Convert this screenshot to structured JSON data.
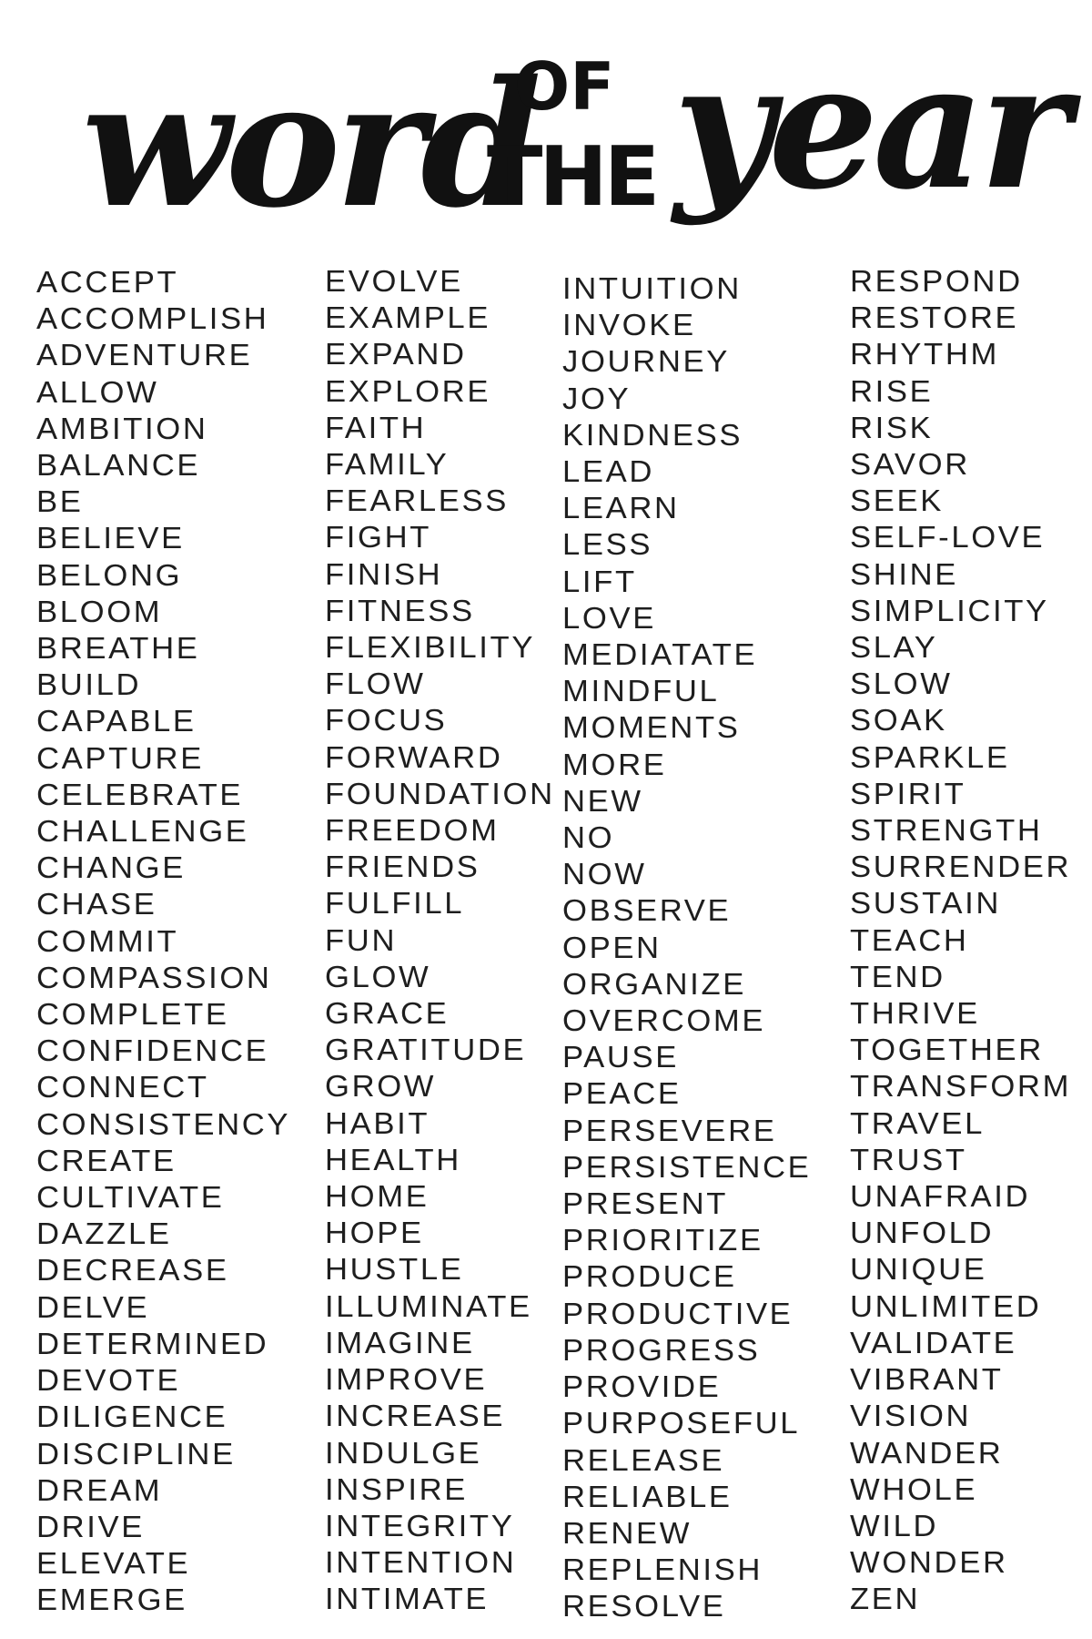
{
  "title": {
    "word": "word",
    "of": "OF",
    "the": "THE",
    "year": "year"
  },
  "columns": [
    [
      "ACCEPT",
      "ACCOMPLISH",
      "ADVENTURE",
      "ALLOW",
      "AMBITION",
      "BALANCE",
      "BE",
      "BELIEVE",
      "BELONG",
      "BLOOM",
      "BREATHE",
      "BUILD",
      "CAPABLE",
      "CAPTURE",
      "CELEBRATE",
      "CHALLENGE",
      "CHANGE",
      "CHASE",
      "COMMIT",
      "COMPASSION",
      "COMPLETE",
      "CONFIDENCE",
      "CONNECT",
      "CONSISTENCY",
      "CREATE",
      "CULTIVATE",
      "DAZZLE",
      "DECREASE",
      "DELVE",
      "DETERMINED",
      "DEVOTE",
      "DILIGENCE",
      "DISCIPLINE",
      "DREAM",
      "DRIVE",
      "ELEVATE",
      "EMERGE"
    ],
    [
      "EVOLVE",
      "EXAMPLE",
      "EXPAND",
      "EXPLORE",
      "FAITH",
      "FAMILY",
      "FEARLESS",
      "FIGHT",
      "FINISH",
      "FITNESS",
      "FLEXIBILITY",
      "FLOW",
      "FOCUS",
      "FORWARD",
      "FOUNDATION",
      "FREEDOM",
      "FRIENDS",
      "FULFILL",
      "FUN",
      "GLOW",
      "GRACE",
      "GRATITUDE",
      "GROW",
      "HABIT",
      "HEALTH",
      "HOME",
      "HOPE",
      "HUSTLE",
      "ILLUMINATE",
      "IMAGINE",
      "IMPROVE",
      "INCREASE",
      "INDULGE",
      "INSPIRE",
      "INTEGRITY",
      "INTENTION",
      "INTIMATE"
    ],
    [
      "INTUITION",
      "INVOKE",
      "JOURNEY",
      "JOY",
      "KINDNESS",
      "LEAD",
      "LEARN",
      "LESS",
      "LIFT",
      "LOVE",
      "MEDIATATE",
      "MINDFUL",
      "MOMENTS",
      "MORE",
      "NEW",
      "NO",
      "NOW",
      "OBSERVE",
      "OPEN",
      "ORGANIZE",
      "OVERCOME",
      "PAUSE",
      "PEACE",
      "PERSEVERE",
      "PERSISTENCE",
      "PRESENT",
      "PRIORITIZE",
      "PRODUCE",
      "PRODUCTIVE",
      "PROGRESS",
      "PROVIDE",
      "PURPOSEFUL",
      "RELEASE",
      "RELIABLE",
      "RENEW",
      "REPLENISH",
      "RESOLVE"
    ],
    [
      "RESPOND",
      "RESTORE",
      "RHYTHM",
      "RISE",
      "RISK",
      "SAVOR",
      "SEEK",
      "SELF-LOVE",
      "SHINE",
      "SIMPLICITY",
      "SLAY",
      "SLOW",
      "SOAK",
      "SPARKLE",
      "SPIRIT",
      "STRENGTH",
      "SURRENDER",
      "SUSTAIN",
      "TEACH",
      "TEND",
      "THRIVE",
      "TOGETHER",
      "TRANSFORM",
      "TRAVEL",
      "TRUST",
      "UNAFRAID",
      "UNFOLD",
      "UNIQUE",
      "UNLIMITED",
      "VALIDATE",
      "VIBRANT",
      "VISION",
      "WANDER",
      "WHOLE",
      "WILD",
      "WONDER",
      "ZEN"
    ]
  ]
}
